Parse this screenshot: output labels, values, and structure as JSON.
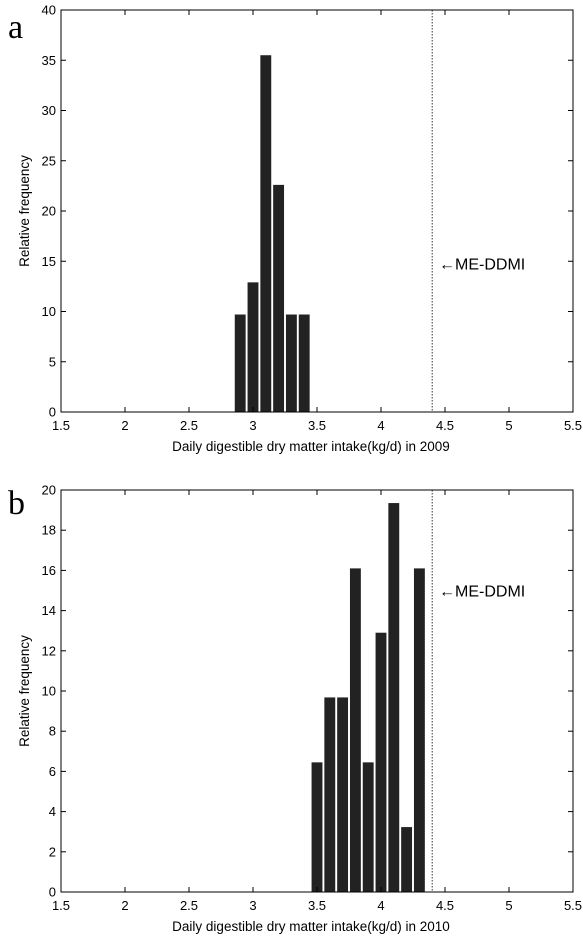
{
  "chart_data": [
    {
      "type": "bar",
      "panel_label": "a",
      "xlabel": "Daily digestible dry matter intake(kg/d) in 2009",
      "ylabel": "Relative frequency",
      "xlim": [
        1.5,
        5.5
      ],
      "ylim": [
        0,
        40
      ],
      "xticks": [
        "1.5",
        "2",
        "2.5",
        "3",
        "3.5",
        "4",
        "4.5",
        "5",
        "5.5"
      ],
      "yticks": [
        "0",
        "5",
        "10",
        "15",
        "20",
        "25",
        "30",
        "35",
        "40"
      ],
      "bar_width": 0.085,
      "bar_color": "#222222",
      "bars": [
        {
          "x": 2.9,
          "value": 9.7
        },
        {
          "x": 3.0,
          "value": 12.9
        },
        {
          "x": 3.1,
          "value": 35.5
        },
        {
          "x": 3.2,
          "value": 22.6
        },
        {
          "x": 3.3,
          "value": 9.7
        },
        {
          "x": 3.4,
          "value": 9.7
        }
      ],
      "reference_line": {
        "x": 4.4,
        "style": "dotted"
      },
      "annotation": {
        "text": "←ME-DDMI",
        "x": 4.5,
        "y": 14.8
      }
    },
    {
      "type": "bar",
      "panel_label": "b",
      "xlabel": "Daily digestible dry matter intake(kg/d) in 2010",
      "ylabel": "Relative frequency",
      "xlim": [
        1.5,
        5.5
      ],
      "ylim": [
        0,
        20
      ],
      "xticks": [
        "1.5",
        "2",
        "2.5",
        "3",
        "3.5",
        "4",
        "4.5",
        "5",
        "5.5"
      ],
      "yticks": [
        "0",
        "2",
        "4",
        "6",
        "8",
        "10",
        "12",
        "14",
        "16",
        "18",
        "20"
      ],
      "bar_width": 0.085,
      "bar_color": "#222222",
      "bars": [
        {
          "x": 3.5,
          "value": 6.45
        },
        {
          "x": 3.6,
          "value": 9.68
        },
        {
          "x": 3.7,
          "value": 9.68
        },
        {
          "x": 3.8,
          "value": 16.1
        },
        {
          "x": 3.9,
          "value": 6.45
        },
        {
          "x": 4.0,
          "value": 12.9
        },
        {
          "x": 4.1,
          "value": 19.35
        },
        {
          "x": 4.2,
          "value": 3.23
        },
        {
          "x": 4.3,
          "value": 16.1
        }
      ],
      "reference_line": {
        "x": 4.4,
        "style": "dotted"
      },
      "annotation": {
        "text": "←ME-DDMI",
        "x": 4.5,
        "y": 15.0
      }
    }
  ]
}
